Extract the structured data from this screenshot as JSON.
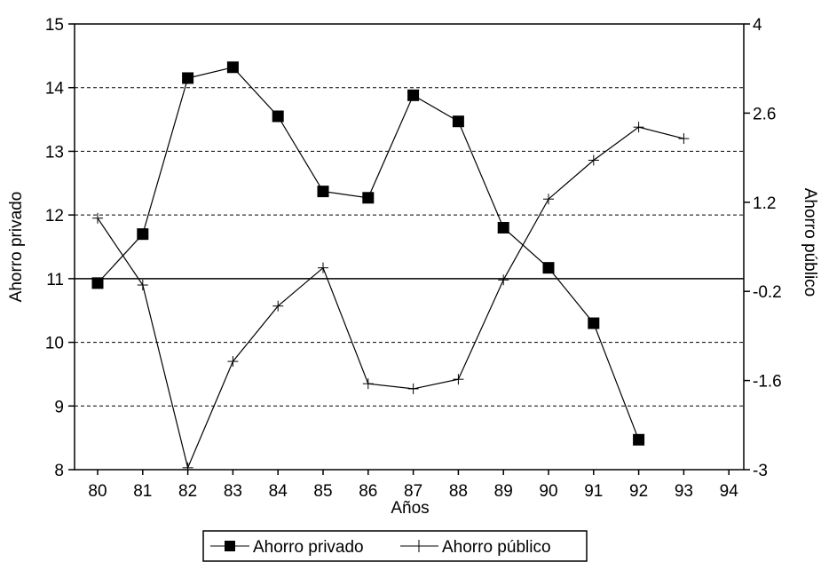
{
  "chart_data": {
    "type": "line",
    "title": "",
    "xlabel": "Años",
    "ylabel_left": "Ahorro privado",
    "ylabel_right": "Ahorro público",
    "categories": [
      "80",
      "81",
      "82",
      "83",
      "84",
      "85",
      "86",
      "87",
      "88",
      "89",
      "90",
      "91",
      "92",
      "93",
      "94"
    ],
    "ylim_left": [
      8,
      15
    ],
    "ylim_right": [
      -3,
      4
    ],
    "yticks_left": [
      "8",
      "9",
      "10",
      "11",
      "12",
      "13",
      "14",
      "15"
    ],
    "yticks_right": [
      "-3",
      "-1.6",
      "-0.2",
      "1.2",
      "2.6",
      "4"
    ],
    "grid": "horizontal dashed",
    "legend": "bottom",
    "series": [
      {
        "name": "Ahorro privado",
        "axis": "left",
        "marker": "filled-square",
        "values": [
          10.93,
          11.7,
          14.15,
          14.32,
          13.55,
          12.37,
          12.27,
          13.88,
          13.47,
          11.8,
          11.17,
          10.3,
          8.47,
          null,
          null
        ]
      },
      {
        "name": "Ahorro público",
        "axis": "right",
        "marker": "plus",
        "values": [
          0.95,
          -0.1,
          -2.97,
          -1.3,
          -0.43,
          0.17,
          -1.65,
          -1.73,
          -1.58,
          -0.02,
          1.25,
          1.86,
          2.38,
          2.2,
          null
        ]
      }
    ]
  },
  "colors": {
    "line": "#000000",
    "grid": "#000000",
    "background": "#ffffff"
  }
}
